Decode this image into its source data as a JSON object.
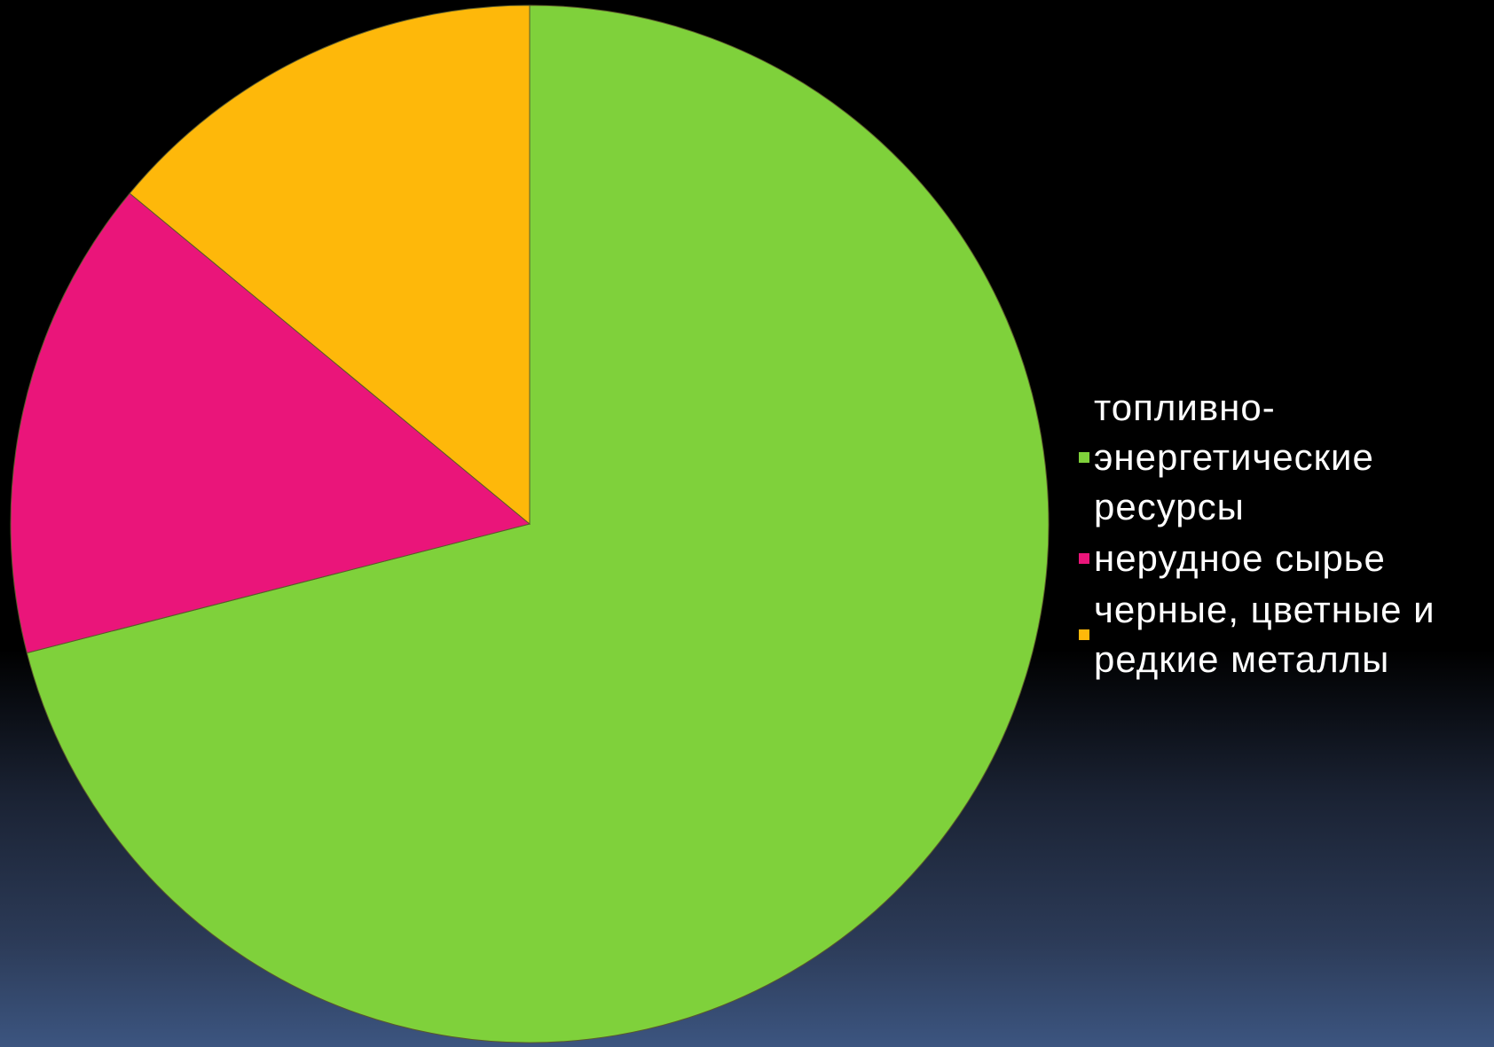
{
  "chart_data": {
    "type": "pie",
    "start_angle_deg": 0,
    "direction": "clockwise",
    "slices": [
      {
        "label": "топливно-\nэнергетические\nресурсы",
        "value": 71,
        "color": "#7fd13b"
      },
      {
        "label": "нерудное сырье",
        "value": 15,
        "color": "#ea157a"
      },
      {
        "label": "черные, цветные и\nредкие металлы",
        "value": 14,
        "color": "#feb80a"
      }
    ],
    "legend_position": "right"
  }
}
